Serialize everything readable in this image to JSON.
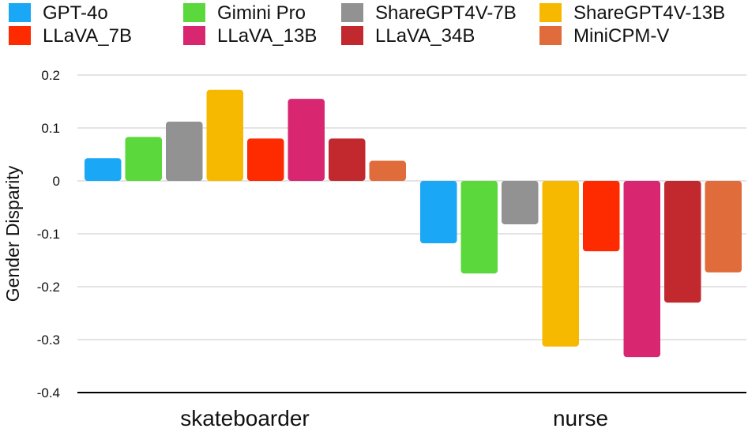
{
  "chart_data": {
    "type": "bar",
    "title": "",
    "xlabel": "",
    "ylabel": "Gender Disparity",
    "ylim": [
      -0.4,
      0.2
    ],
    "yticks": [
      0.2,
      0.1,
      0,
      -0.1,
      -0.2,
      -0.3,
      -0.4
    ],
    "ytick_labels": [
      "0.2",
      "0.1",
      "0",
      "-0.1",
      "-0.2",
      "-0.3",
      "-0.4"
    ],
    "grid": true,
    "legend_position": "top",
    "categories": [
      "skateboarder",
      "nurse"
    ],
    "series": [
      {
        "name": "GPT-4o",
        "color": "#1aa7f5",
        "values": [
          0.043,
          -0.118
        ]
      },
      {
        "name": "Gimini Pro",
        "color": "#5bd83c",
        "values": [
          0.083,
          -0.175
        ]
      },
      {
        "name": "ShareGPT4V-7B",
        "color": "#929292",
        "values": [
          0.112,
          -0.082
        ]
      },
      {
        "name": "ShareGPT4V-13B",
        "color": "#f7b900",
        "values": [
          0.172,
          -0.313
        ]
      },
      {
        "name": "LLaVA_7B",
        "color": "#fe2a00",
        "values": [
          0.08,
          -0.133
        ]
      },
      {
        "name": "LLaVA_13B",
        "color": "#d82770",
        "values": [
          0.155,
          -0.333
        ]
      },
      {
        "name": "LLaVA_34B",
        "color": "#c2292f",
        "values": [
          0.08,
          -0.23
        ]
      },
      {
        "name": "MiniCPM-V",
        "color": "#e06c3b",
        "values": [
          0.038,
          -0.173
        ]
      }
    ]
  }
}
